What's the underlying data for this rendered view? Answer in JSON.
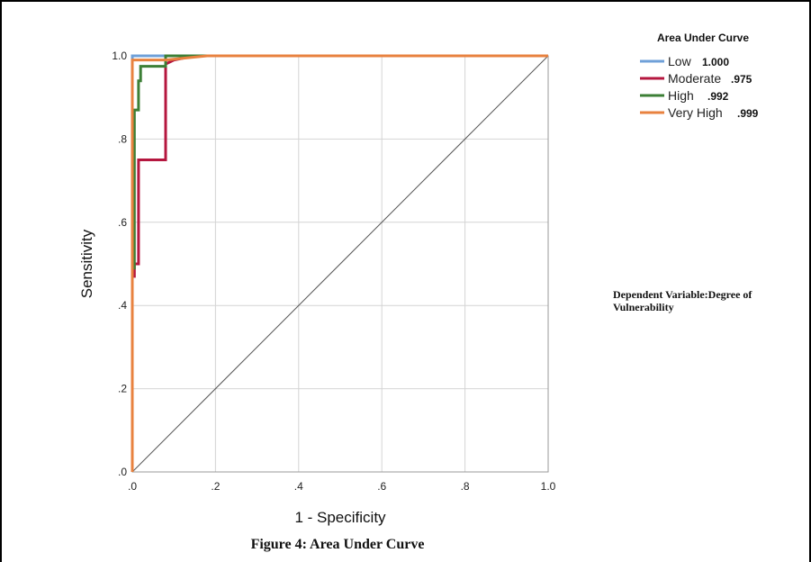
{
  "caption": "Figure 4: Area Under Curve",
  "note_lines": [
    "Dependent Variable:Degree of",
    "Vulnerability"
  ],
  "chart_data": {
    "type": "line",
    "title": "",
    "xlabel": "1 - Specificity",
    "ylabel": "Sensitivity",
    "xlim": [
      0,
      1
    ],
    "ylim": [
      0,
      1
    ],
    "x_ticks": [
      0,
      0.2,
      0.4,
      0.6,
      0.8,
      1.0
    ],
    "y_ticks": [
      0,
      0.2,
      0.4,
      0.6,
      0.8,
      1.0
    ],
    "x_tick_labels": [
      ".0",
      ".2",
      ".4",
      ".6",
      ".8",
      "1.0"
    ],
    "y_tick_labels": [
      ".0",
      ".2",
      ".4",
      ".6",
      ".8",
      "1.0"
    ],
    "grid": true,
    "legend": {
      "title": "Area Under Curve",
      "position": "top-right"
    },
    "reference_line": {
      "x": [
        0,
        1
      ],
      "y": [
        0,
        1
      ],
      "color": "#555555"
    },
    "series": [
      {
        "name": "Low",
        "auc": "1.000",
        "color": "#6fa0d8",
        "x": [
          0,
          0,
          1
        ],
        "y": [
          0,
          1,
          1
        ]
      },
      {
        "name": "Moderate",
        "auc": ".975",
        "color": "#b5173f",
        "x": [
          0,
          0,
          0.005,
          0.005,
          0.015,
          0.015,
          0.08,
          0.08,
          0.1,
          0.15,
          1
        ],
        "y": [
          0,
          0.47,
          0.47,
          0.5,
          0.5,
          0.75,
          0.75,
          0.98,
          0.99,
          1,
          1
        ]
      },
      {
        "name": "High",
        "auc": ".992",
        "color": "#3c7f36",
        "x": [
          0,
          0,
          0.005,
          0.005,
          0.015,
          0.015,
          0.02,
          0.02,
          0.08,
          0.08,
          0.15,
          1
        ],
        "y": [
          0,
          0.49,
          0.49,
          0.87,
          0.87,
          0.94,
          0.94,
          0.975,
          0.975,
          1,
          1,
          1
        ]
      },
      {
        "name": "Very High",
        "auc": ".999",
        "color": "#e8823f",
        "x": [
          0,
          0,
          0.08,
          0.18,
          1
        ],
        "y": [
          0,
          0.99,
          0.99,
          1,
          1
        ]
      }
    ]
  }
}
